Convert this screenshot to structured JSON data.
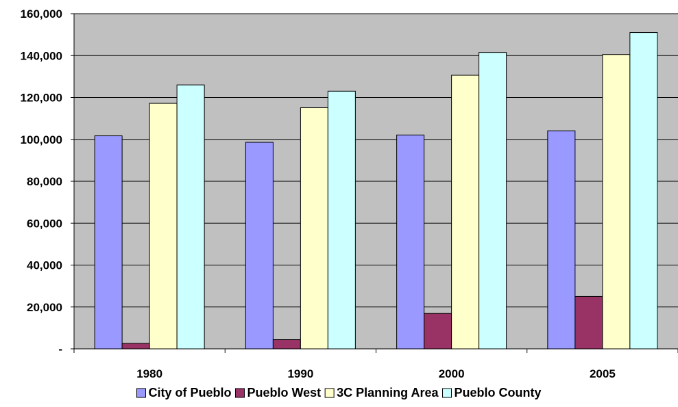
{
  "chart_data": {
    "type": "bar",
    "categories": [
      "1980",
      "1990",
      "2000",
      "2005"
    ],
    "series": [
      {
        "name": "City of Pueblo",
        "color": "#9999ff",
        "values": [
          101700,
          98600,
          102100,
          104100
        ]
      },
      {
        "name": "Pueblo West",
        "color": "#993366",
        "values": [
          2600,
          4400,
          16900,
          25000
        ]
      },
      {
        "name": "3C Planning Area",
        "color": "#ffffcc",
        "values": [
          117200,
          115100,
          130600,
          140500
        ]
      },
      {
        "name": "Pueblo County",
        "color": "#ccffff",
        "values": [
          126000,
          123000,
          141500,
          151000
        ]
      }
    ],
    "ylim": [
      0,
      160000
    ],
    "yticks": [
      0,
      20000,
      40000,
      60000,
      80000,
      100000,
      120000,
      140000,
      160000
    ],
    "ytick_labels": [
      "-",
      "20,000",
      "40,000",
      "60,000",
      "80,000",
      "100,000",
      "120,000",
      "140,000",
      "160,000"
    ],
    "grid": true,
    "plot_background": "#c0c0c0",
    "legend_position": "bottom"
  }
}
